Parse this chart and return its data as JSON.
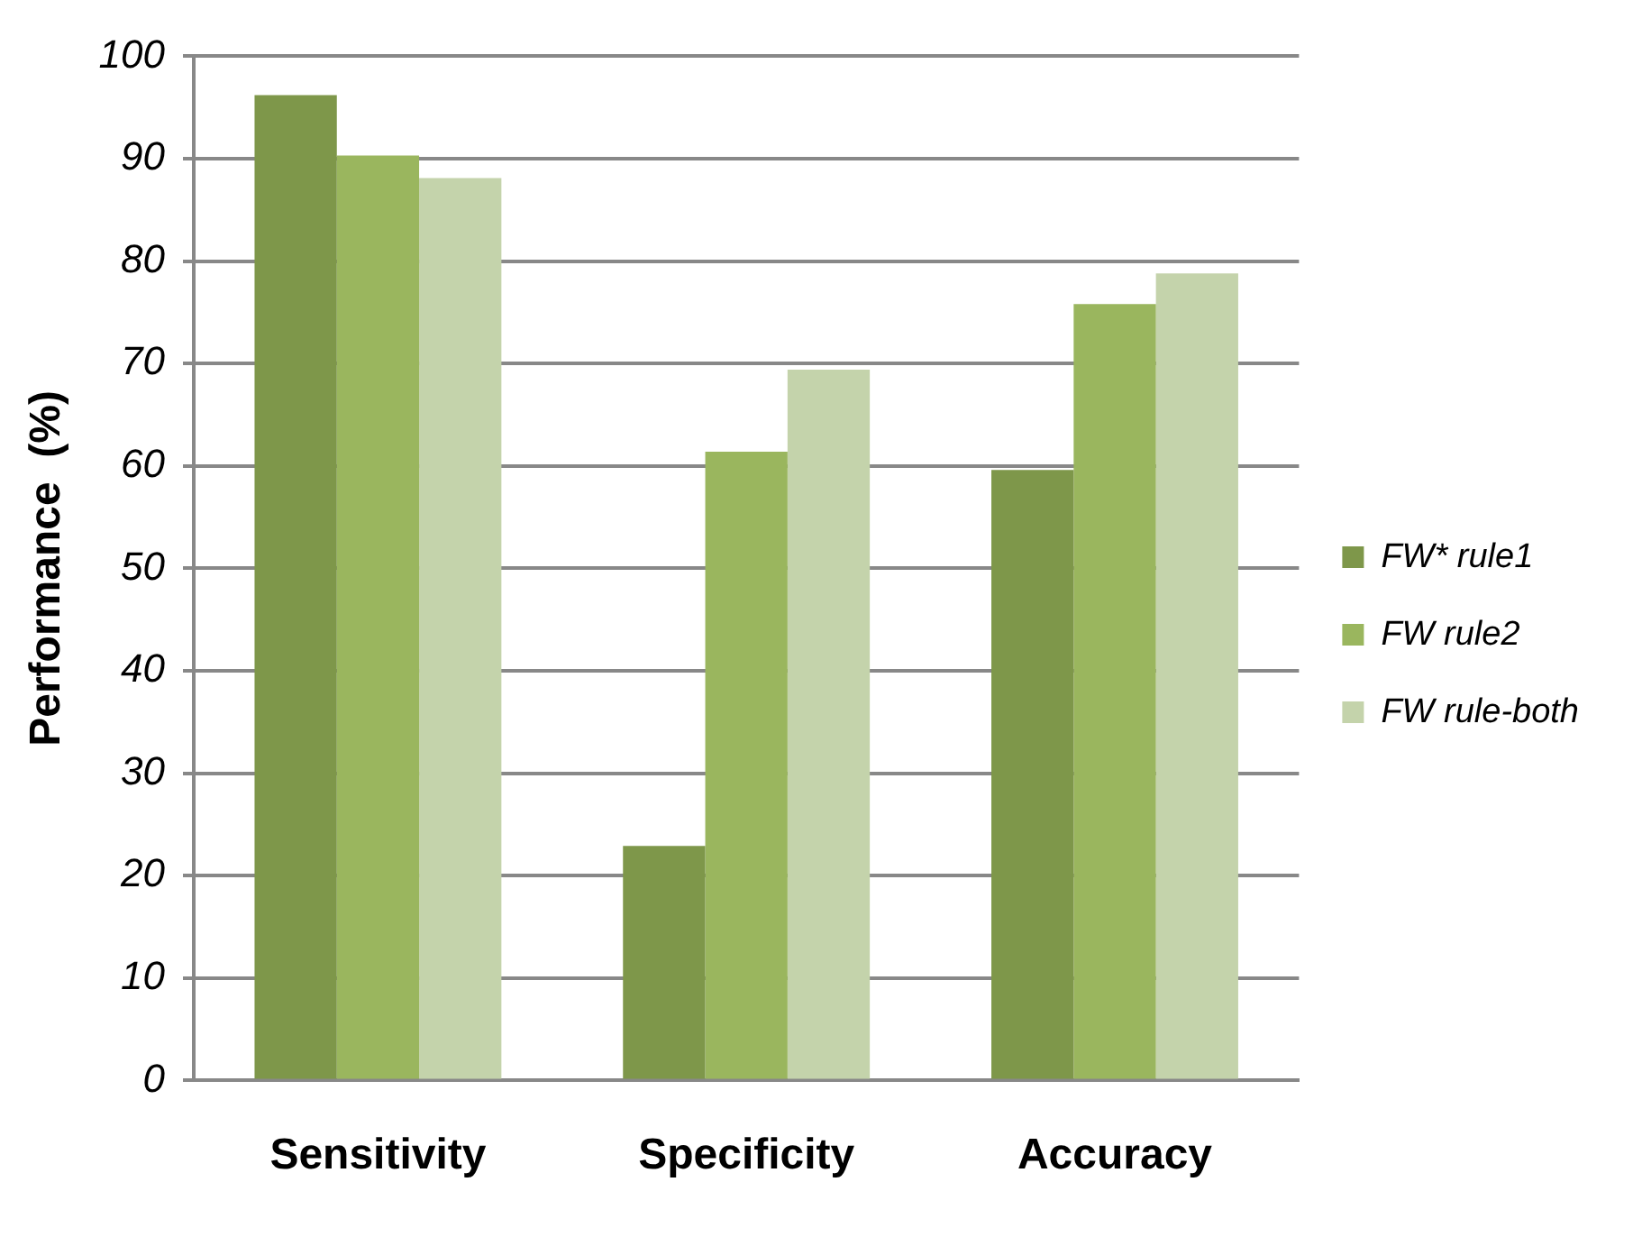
{
  "chart_data": {
    "type": "bar",
    "ylabel": "Performance  (%)",
    "categories": [
      "Sensitivity",
      "Specificity",
      "Accuracy"
    ],
    "series": [
      {
        "name": "FW* rule1",
        "color": "#7e974a",
        "values": [
          96.2,
          22.9,
          59.6
        ]
      },
      {
        "name": "FW rule2",
        "color": "#9ab65e",
        "values": [
          90.3,
          61.4,
          75.8
        ]
      },
      {
        "name": "FW rule-both",
        "color": "#c4d3ab",
        "values": [
          88.1,
          69.4,
          78.8
        ]
      }
    ],
    "ylim": [
      0,
      100
    ],
    "yticks": [
      0,
      10,
      20,
      30,
      40,
      50,
      60,
      70,
      80,
      90,
      100
    ],
    "grid": "y",
    "legend": "right"
  }
}
